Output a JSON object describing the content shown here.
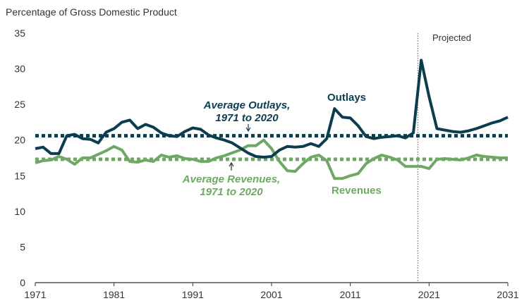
{
  "chart_data": {
    "type": "line",
    "ylabel": "Percentage of Gross Domestic Product",
    "xlim": [
      1971,
      2031
    ],
    "ylim": [
      0,
      35
    ],
    "yticks": [
      0,
      5,
      10,
      15,
      20,
      25,
      30,
      35
    ],
    "xticks": [
      1971,
      1981,
      1991,
      2001,
      2011,
      2021,
      2031
    ],
    "colors": {
      "outlays": "#0b3d4f",
      "revenues": "#6fa865",
      "axis": "#333333"
    },
    "projection_start": 2021,
    "projection_label": "Projected",
    "series": [
      {
        "name": "Outlays",
        "label": "Outlays",
        "x": [
          1971,
          1972,
          1973,
          1974,
          1975,
          1976,
          1977,
          1978,
          1979,
          1980,
          1981,
          1982,
          1983,
          1984,
          1985,
          1986,
          1987,
          1988,
          1989,
          1990,
          1991,
          1992,
          1993,
          1994,
          1995,
          1996,
          1997,
          1998,
          1999,
          2000,
          2001,
          2002,
          2003,
          2004,
          2005,
          2006,
          2007,
          2008,
          2009,
          2010,
          2011,
          2012,
          2013,
          2014,
          2015,
          2016,
          2017,
          2018,
          2019,
          2020,
          2021,
          2022,
          2023,
          2024,
          2025,
          2026,
          2027,
          2028,
          2029,
          2030,
          2031
        ],
        "values": [
          18.8,
          19.0,
          18.1,
          18.1,
          20.6,
          20.8,
          20.2,
          20.1,
          19.6,
          21.1,
          21.6,
          22.5,
          22.8,
          21.6,
          22.2,
          21.8,
          21.0,
          20.6,
          20.5,
          21.2,
          21.7,
          21.5,
          20.7,
          20.3,
          20.0,
          19.6,
          18.9,
          18.2,
          17.7,
          17.6,
          17.7,
          18.6,
          19.1,
          19.0,
          19.1,
          19.5,
          19.1,
          20.2,
          24.4,
          23.2,
          23.1,
          22.0,
          20.5,
          20.2,
          20.4,
          20.5,
          20.6,
          20.3,
          21.0,
          31.2,
          26.1,
          21.6,
          21.4,
          21.2,
          21.1,
          21.3,
          21.6,
          22.0,
          22.4,
          22.7,
          23.2
        ]
      },
      {
        "name": "Revenues",
        "label": "Revenues",
        "x": [
          1971,
          1972,
          1973,
          1974,
          1975,
          1976,
          1977,
          1978,
          1979,
          1980,
          1981,
          1982,
          1983,
          1984,
          1985,
          1986,
          1987,
          1988,
          1989,
          1990,
          1991,
          1992,
          1993,
          1994,
          1995,
          1996,
          1997,
          1998,
          1999,
          2000,
          2001,
          2002,
          2003,
          2004,
          2005,
          2006,
          2007,
          2008,
          2009,
          2010,
          2011,
          2012,
          2013,
          2014,
          2015,
          2016,
          2017,
          2018,
          2019,
          2020,
          2021,
          2022,
          2023,
          2024,
          2025,
          2026,
          2027,
          2028,
          2029,
          2030,
          2031
        ],
        "values": [
          16.8,
          17.1,
          17.2,
          17.7,
          17.3,
          16.6,
          17.5,
          17.5,
          18.0,
          18.5,
          19.1,
          18.6,
          17.0,
          16.9,
          17.2,
          17.0,
          17.9,
          17.6,
          17.8,
          17.4,
          17.3,
          17.0,
          17.0,
          17.5,
          17.8,
          18.2,
          18.6,
          19.2,
          19.2,
          20.0,
          18.8,
          17.0,
          15.7,
          15.6,
          16.7,
          17.6,
          17.9,
          17.1,
          14.6,
          14.6,
          15.0,
          15.3,
          16.7,
          17.4,
          17.9,
          17.6,
          17.2,
          16.3,
          16.3,
          16.3,
          16.0,
          17.3,
          17.4,
          17.3,
          17.2,
          17.5,
          17.9,
          17.7,
          17.6,
          17.5,
          17.5
        ]
      }
    ],
    "averages": [
      {
        "name": "Average Outlays",
        "value": 20.6,
        "label_line1": "Average Outlays,",
        "label_line2": "1971 to 2020"
      },
      {
        "name": "Average Revenues",
        "value": 17.3,
        "label_line1": "Average Revenues,",
        "label_line2": "1971 to 2020"
      }
    ]
  }
}
